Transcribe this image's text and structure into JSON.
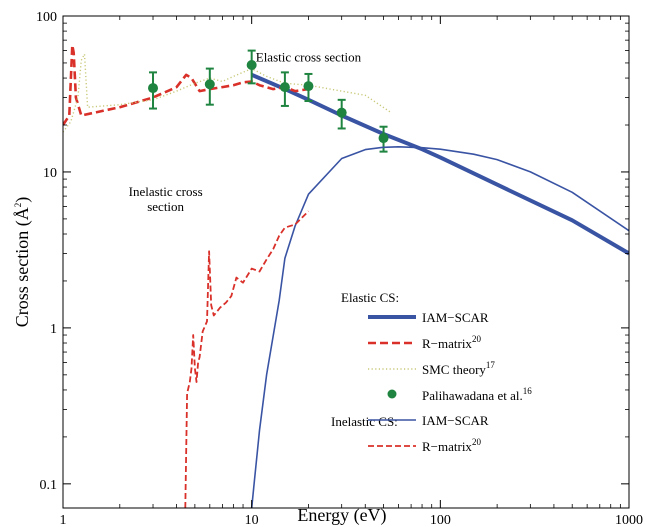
{
  "chart_data": {
    "type": "line",
    "xscale": "log",
    "yscale": "log",
    "xlim": [
      1,
      1000
    ],
    "ylim": [
      0.07,
      100
    ],
    "xlabel": "Energy (eV)",
    "ylabel_main": "Cross section (Å",
    "ylabel_sup": "2",
    "ylabel_close": ")",
    "xticks": [
      {
        "value": 1,
        "label": "1"
      },
      {
        "value": 10,
        "label": "10"
      },
      {
        "value": 100,
        "label": "100"
      },
      {
        "value": 1000,
        "label": "1000"
      }
    ],
    "yticks": [
      {
        "value": 0.1,
        "label": "0.1"
      },
      {
        "value": 1,
        "label": "1"
      },
      {
        "value": 10,
        "label": "10"
      },
      {
        "value": 100,
        "label": "100"
      }
    ],
    "annotations": [
      {
        "text": "Elastic cross section",
        "x": 20,
        "y": 51
      },
      {
        "text": "Inelastic cross",
        "x": 3.5,
        "y": 7.0
      },
      {
        "text": "section",
        "x": 3.5,
        "y": 5.6
      }
    ],
    "series": [
      {
        "name": "IAM−SCAR",
        "group": "Elastic",
        "style": "thick",
        "color": "#3a54a4",
        "x": [
          10,
          15,
          20,
          30,
          50,
          80,
          100,
          200,
          500,
          1000
        ],
        "y": [
          42,
          34,
          29,
          23,
          17.5,
          14.0,
          12.4,
          8.3,
          4.9,
          3.0
        ]
      },
      {
        "name": "R−matrix",
        "name_sup": "20",
        "group": "Elastic",
        "style": "dashed",
        "color": "#d9312a",
        "x": [
          1.0,
          1.08,
          1.12,
          1.14,
          1.17,
          1.25,
          2,
          3,
          4,
          4.5,
          4.8,
          5.3,
          6,
          7,
          8,
          9,
          10,
          11,
          13,
          15,
          17,
          20
        ],
        "y": [
          20,
          23,
          65,
          58,
          30,
          23,
          26,
          30,
          35,
          42,
          40,
          33,
          34,
          35,
          36,
          37.5,
          38,
          36,
          34,
          35,
          33,
          34
        ]
      },
      {
        "name": "SMC theory",
        "name_sup": "17",
        "group": "Elastic",
        "style": "dotted",
        "color": "#c8c878",
        "x": [
          1.0,
          1.1,
          1.2,
          1.25,
          1.3,
          1.35,
          2,
          3,
          4,
          5,
          6,
          7,
          8,
          10,
          12,
          15,
          20,
          30,
          40,
          55
        ],
        "y": [
          18,
          21,
          30,
          52,
          57,
          26,
          27,
          29,
          33,
          37,
          40,
          38,
          41,
          46,
          41,
          37,
          36,
          33,
          31,
          24
        ]
      },
      {
        "name": "Palihawadana et al.",
        "name_sup": "16",
        "group": "Elastic",
        "style": "markers",
        "color": "#1e8440",
        "x": [
          3,
          6,
          10,
          15,
          20,
          30,
          50
        ],
        "y": [
          34.5,
          36.5,
          48.5,
          35,
          35.5,
          24,
          16.5
        ],
        "err": [
          9,
          9.5,
          11.5,
          8.5,
          7,
          5,
          3
        ]
      },
      {
        "name": "IAM−SCAR",
        "group": "Inelastic",
        "style": "thin",
        "color": "#3a54a4",
        "x": [
          10,
          10.3,
          11,
          12,
          14,
          15,
          17,
          20,
          30,
          40,
          50,
          60,
          80,
          100,
          150,
          200,
          300,
          500,
          1000
        ],
        "y": [
          0.07,
          0.1,
          0.22,
          0.5,
          1.5,
          2.8,
          4.5,
          7.2,
          12.2,
          13.9,
          14.4,
          14.5,
          14.3,
          14.0,
          13.0,
          12.0,
          10.0,
          7.4,
          4.2
        ]
      },
      {
        "name": "R−matrix",
        "name_sup": "20",
        "group": "Inelastic",
        "style": "thin-dashed",
        "color": "#d9312a",
        "x": [
          4.45,
          4.55,
          4.7,
          4.8,
          4.9,
          5.0,
          5.1,
          5.2,
          5.3,
          5.5,
          5.8,
          5.95,
          6.1,
          6.3,
          6.8,
          7.3,
          7.8,
          8.3,
          9.0,
          10,
          11,
          12,
          13,
          14,
          15,
          17,
          20
        ],
        "y": [
          0.07,
          0.38,
          0.45,
          0.55,
          0.9,
          0.55,
          0.45,
          0.6,
          0.65,
          0.95,
          1.1,
          3.1,
          1.4,
          1.2,
          1.35,
          1.45,
          1.6,
          2.1,
          1.95,
          2.4,
          2.3,
          2.75,
          3.2,
          3.9,
          4.4,
          4.6,
          5.6
        ]
      }
    ],
    "legend": {
      "position": "bottom-right",
      "elastic_header": "Elastic CS:",
      "inelastic_header": "Inelastic CS:"
    }
  }
}
